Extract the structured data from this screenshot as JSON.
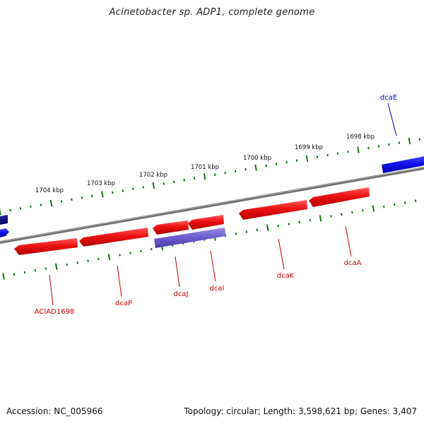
{
  "title": "Acinetobacter sp. ADP1, complete genome",
  "accession_label": "Accession: NC_005966",
  "summary_label": "Topology: circular; Length: 3,598,621 bp; Genes: 3,407",
  "ticks": [
    {
      "label": "1704 kbp"
    },
    {
      "label": "1703 kbp"
    },
    {
      "label": "1702 kbp"
    },
    {
      "label": "1701 kbp"
    },
    {
      "label": "1700 kbp"
    },
    {
      "label": "1699 kbp"
    },
    {
      "label": "1698 kbp"
    }
  ],
  "genes": [
    {
      "name": "ACIAD1698",
      "strand": "minus",
      "color": "#ee1111"
    },
    {
      "name": "dcaP",
      "strand": "minus",
      "color": "#ee1111"
    },
    {
      "name": "dcaJ",
      "strand": "minus",
      "color": "#ee1111"
    },
    {
      "name": "dcaI",
      "strand": "minus",
      "color": "#ee1111"
    },
    {
      "name": "dcaK",
      "strand": "minus",
      "color": "#ee1111"
    },
    {
      "name": "dcaA",
      "strand": "minus",
      "color": "#ee1111"
    },
    {
      "name": "dcaE",
      "strand": "plus",
      "color": "#1111ee"
    }
  ],
  "colors": {
    "backbone": "#808080",
    "tick": "#117711",
    "minus_label": "#cc0000",
    "plus_label": "#0000cc",
    "purple_feature": "#6a5acd",
    "dark_feature": "#000080"
  }
}
